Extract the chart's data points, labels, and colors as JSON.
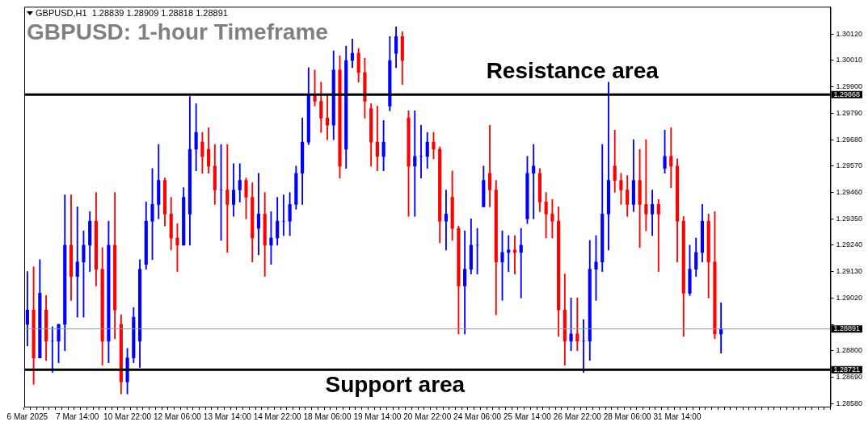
{
  "chart_data": {
    "type": "candlestick",
    "title": "GBPUSD: 1-hour Timeframe",
    "annotations": [
      "GBPUSD,H1  1.28839 1.28909 1.28818 1.28891",
      {
        "text": "Resistance area",
        "y": 1.29868
      },
      {
        "text": "Support area",
        "y": 1.28721
      }
    ],
    "categories": [
      "6 Mar 2025",
      null,
      null,
      null,
      null,
      null,
      null,
      null,
      "7 Mar 14:00",
      null,
      null,
      null,
      null,
      null,
      null,
      null,
      "10 Mar 22:00",
      null,
      null,
      null,
      null,
      null,
      null,
      null,
      "12 Mar 06:00",
      null,
      null,
      null,
      null,
      null,
      null,
      null,
      "13 Mar 14:00",
      null,
      null,
      null,
      null,
      null,
      null,
      null,
      "14 Mar 22:00",
      null,
      null,
      null,
      null,
      null,
      null,
      null,
      "18 Mar 06:00",
      null,
      null,
      null,
      null,
      null,
      null,
      null,
      "19 Mar 14:00",
      null,
      null,
      null,
      null,
      null,
      null,
      null,
      "20 Mar 22:00",
      null,
      null,
      null,
      null,
      null,
      null,
      null,
      "24 Mar 06:00",
      null,
      null,
      null,
      null,
      null,
      null,
      null,
      "25 Mar 14:00",
      null,
      null,
      null,
      null,
      null,
      null,
      null,
      "26 Mar 22:00",
      null,
      null,
      null,
      null,
      null,
      null,
      null,
      "28 Mar 06:00",
      null,
      null,
      null,
      null,
      null,
      null,
      null,
      "31 Mar 14:00",
      null,
      null,
      null,
      null,
      null,
      null,
      null,
      null,
      null,
      null,
      null,
      null,
      null,
      null,
      null,
      null,
      null,
      null,
      null,
      null,
      null,
      null,
      null,
      null
    ],
    "ohlc": [
      [
        1.2891,
        1.2913,
        1.2882,
        1.2897
      ],
      [
        1.2897,
        1.2915,
        1.2866,
        1.2877
      ],
      [
        1.2877,
        1.2918,
        1.2877,
        1.2904
      ],
      [
        1.2897,
        1.2903,
        1.2876,
        1.2884
      ],
      [
        1.2884,
        1.289,
        1.2871,
        1.2884
      ],
      [
        1.2884,
        1.2891,
        1.2875,
        1.2891
      ],
      [
        1.2891,
        1.2945,
        1.288,
        1.2924
      ],
      [
        1.2924,
        1.2945,
        1.2901,
        1.2911
      ],
      [
        1.2911,
        1.294,
        1.2894,
        1.2917
      ],
      [
        1.2917,
        1.293,
        1.2894,
        1.2924
      ],
      [
        1.2924,
        1.2938,
        1.2913,
        1.2934
      ],
      [
        1.2934,
        1.2946,
        1.2907,
        1.2914
      ],
      [
        1.2914,
        1.2923,
        1.2874,
        1.2884
      ],
      [
        1.2884,
        1.2934,
        1.2875,
        1.2924
      ],
      [
        1.2924,
        1.2946,
        1.2885,
        1.2897
      ],
      [
        1.2891,
        1.2895,
        1.2862,
        1.2867
      ],
      [
        1.2867,
        1.2881,
        1.2862,
        1.2877
      ],
      [
        1.2877,
        1.2898,
        1.2875,
        1.2894
      ],
      [
        1.2884,
        1.2918,
        1.2873,
        1.2914
      ],
      [
        1.2916,
        1.2942,
        1.2914,
        1.2934
      ],
      [
        1.2934,
        1.2956,
        1.2918,
        1.2941
      ],
      [
        1.2941,
        1.2966,
        1.2935,
        1.2951
      ],
      [
        1.2951,
        1.2952,
        1.2932,
        1.2937
      ],
      [
        1.2937,
        1.2944,
        1.2922,
        1.2927
      ],
      [
        1.2927,
        1.2933,
        1.2913,
        1.2924
      ],
      [
        1.2924,
        1.2948,
        1.2924,
        1.2944
      ],
      [
        1.2937,
        1.2986,
        1.2924,
        1.2964
      ],
      [
        1.2964,
        1.2983,
        1.2955,
        1.2971
      ],
      [
        1.2967,
        1.2971,
        1.2954,
        1.2961
      ],
      [
        1.2964,
        1.2973,
        1.2954,
        1.2957
      ],
      [
        1.2957,
        1.2966,
        1.2941,
        1.2947
      ],
      [
        1.2947,
        1.2966,
        1.2926,
        1.2947
      ],
      [
        1.2947,
        1.2966,
        1.2921,
        1.2941
      ],
      [
        1.2941,
        1.2958,
        1.2936,
        1.2947
      ],
      [
        1.2947,
        1.2958,
        1.2942,
        1.2951
      ],
      [
        1.2951,
        1.2952,
        1.2935,
        1.2944
      ],
      [
        1.2944,
        1.295,
        1.2917,
        1.2927
      ],
      [
        1.2931,
        1.2954,
        1.292,
        1.2937
      ],
      [
        1.2937,
        1.2946,
        1.2911,
        1.2924
      ],
      [
        1.2924,
        1.2938,
        1.2916,
        1.2927
      ],
      [
        1.2927,
        1.2944,
        1.2924,
        1.2934
      ],
      [
        1.2934,
        1.2945,
        1.2928,
        1.2934
      ],
      [
        1.2934,
        1.2946,
        1.2928,
        1.2941
      ],
      [
        1.2941,
        1.2957,
        1.2939,
        1.2954
      ],
      [
        1.2954,
        1.2977,
        1.2941,
        1.2967
      ],
      [
        1.2967,
        1.2998,
        1.2966,
        1.2987
      ],
      [
        1.2987,
        1.2997,
        1.2982,
        1.2984
      ],
      [
        1.2984,
        1.2992,
        1.2971,
        1.2977
      ],
      [
        1.2977,
        1.2987,
        1.2968,
        1.2974
      ],
      [
        1.2974,
        1.3005,
        1.2968,
        1.2997
      ],
      [
        1.2997,
        1.3003,
        1.2952,
        1.2957
      ],
      [
        1.2964,
        1.3007,
        1.2956,
        1.3001
      ],
      [
        1.3001,
        1.301,
        1.2998,
        1.3004
      ],
      [
        1.3004,
        1.3006,
        1.2992,
        1.2996
      ],
      [
        1.2996,
        1.3002,
        1.2977,
        1.2984
      ],
      [
        1.2981,
        1.2983,
        1.2957,
        1.2967
      ],
      [
        1.2967,
        1.2982,
        1.2955,
        1.2961
      ],
      [
        1.2961,
        1.2976,
        1.2955,
        1.2967
      ],
      [
        1.2982,
        1.3011,
        1.298,
        1.3001
      ],
      [
        1.3004,
        1.3015,
        1.2998,
        1.3011
      ],
      [
        1.3011,
        1.3013,
        1.2991,
        1.3001
      ],
      [
        1.2977,
        1.298,
        1.2936,
        1.2957
      ],
      [
        1.2957,
        1.298,
        1.2936,
        1.2961
      ],
      [
        1.2961,
        1.2974,
        1.2952,
        1.2961
      ],
      [
        1.2961,
        1.2971,
        1.2956,
        1.2967
      ],
      [
        1.2967,
        1.2971,
        1.296,
        1.2964
      ],
      [
        1.2964,
        1.2965,
        1.2925,
        1.2934
      ],
      [
        1.2934,
        1.2947,
        1.2922,
        1.2937
      ],
      [
        1.2944,
        1.2955,
        1.2926,
        1.2931
      ],
      [
        1.2931,
        1.2932,
        1.2887,
        1.2907
      ],
      [
        1.2907,
        1.293,
        1.2887,
        1.2914
      ],
      [
        1.2914,
        1.2935,
        1.2912,
        1.2924
      ],
      [
        1.2924,
        1.2931,
        1.2912,
        1.2924
      ],
      [
        1.294,
        1.2957,
        1.294,
        1.2951
      ],
      [
        1.2954,
        1.2974,
        1.294,
        1.2947
      ],
      [
        1.2947,
        1.2951,
        1.2895,
        1.2917
      ],
      [
        1.2917,
        1.293,
        1.2901,
        1.2921
      ],
      [
        1.2921,
        1.2928,
        1.2913,
        1.2922
      ],
      [
        1.2922,
        1.2928,
        1.2912,
        1.2921
      ],
      [
        1.2921,
        1.2931,
        1.2902,
        1.2924
      ],
      [
        1.2935,
        1.2961,
        1.2933,
        1.2954
      ],
      [
        1.2954,
        1.2966,
        1.2935,
        1.2957
      ],
      [
        1.2954,
        1.2956,
        1.2938,
        1.2942
      ],
      [
        1.2942,
        1.2946,
        1.2927,
        1.2937
      ],
      [
        1.2937,
        1.2943,
        1.2927,
        1.2934
      ],
      [
        1.2934,
        1.294,
        1.2886,
        1.2897
      ],
      [
        1.2897,
        1.2912,
        1.2874,
        1.2884
      ],
      [
        1.2884,
        1.2902,
        1.288,
        1.2887
      ],
      [
        1.2887,
        1.2902,
        1.288,
        1.2884
      ],
      [
        1.2884,
        1.2893,
        1.2871,
        1.2884
      ],
      [
        1.2884,
        1.2926,
        1.2876,
        1.2914
      ],
      [
        1.2914,
        1.2928,
        1.2901,
        1.2917
      ],
      [
        1.2917,
        1.2966,
        1.2913,
        1.2937
      ],
      [
        1.2937,
        1.2992,
        1.2922,
        1.2951
      ],
      [
        1.2957,
        1.2972,
        1.2946,
        1.2951
      ],
      [
        1.2951,
        1.2954,
        1.2941,
        1.2947
      ],
      [
        1.2947,
        1.2953,
        1.2936,
        1.2941
      ],
      [
        1.2941,
        1.2968,
        1.2938,
        1.2951
      ],
      [
        1.2951,
        1.2964,
        1.2923,
        1.2941
      ],
      [
        1.2941,
        1.2968,
        1.293,
        1.2937
      ],
      [
        1.2937,
        1.2947,
        1.2928,
        1.2941
      ],
      [
        1.2941,
        1.2943,
        1.2913,
        1.2937
      ],
      [
        1.2956,
        1.2972,
        1.2954,
        1.2961
      ],
      [
        1.2961,
        1.2973,
        1.2948,
        1.2957
      ],
      [
        1.2957,
        1.296,
        1.2917,
        1.2934
      ],
      [
        1.2934,
        1.2936,
        1.2886,
        1.2904
      ],
      [
        1.2904,
        1.2924,
        1.2903,
        1.2914
      ],
      [
        1.2914,
        1.2927,
        1.2911,
        1.2921
      ],
      [
        1.2921,
        1.2941,
        1.2917,
        1.2934
      ],
      [
        1.2934,
        1.2937,
        1.2902,
        1.2917
      ],
      [
        1.2917,
        1.2938,
        1.2885,
        1.2887
      ],
      [
        1.2887,
        1.29,
        1.2879,
        1.28891
      ],
      null,
      null,
      null,
      null,
      null,
      null,
      null,
      null,
      null,
      null,
      null,
      null,
      null,
      null,
      null,
      null,
      null
    ],
    "colors": [
      "#0000ff",
      "#ff0000",
      "#0000ff",
      "#ff0000",
      "#0000ff",
      "#0000ff",
      "#0000ff",
      "#ff0000",
      "#0000ff",
      "#0000ff",
      "#0000ff",
      "#ff0000",
      "#ff0000",
      "#0000ff",
      "#ff0000",
      "#ff0000",
      "#0000ff",
      "#0000ff",
      "#0000ff",
      "#0000ff",
      "#0000ff",
      "#0000ff",
      "#ff0000",
      "#ff0000",
      "#ff0000",
      "#0000ff",
      "#0000ff",
      "#0000ff",
      "#ff0000",
      "#ff0000",
      "#ff0000",
      "#0000ff",
      "#ff0000",
      "#0000ff",
      "#0000ff",
      "#ff0000",
      "#ff0000",
      "#0000ff",
      "#ff0000",
      "#0000ff",
      "#0000ff",
      "#0000ff",
      "#0000ff",
      "#0000ff",
      "#0000ff",
      "#0000ff",
      "#ff0000",
      "#ff0000",
      "#ff0000",
      "#0000ff",
      "#ff0000",
      "#0000ff",
      "#0000ff",
      "#ff0000",
      "#ff0000",
      "#ff0000",
      "#ff0000",
      "#0000ff",
      "#0000ff",
      "#0000ff",
      "#ff0000",
      "#ff0000",
      "#0000ff",
      "#0000ff",
      "#0000ff",
      "#ff0000",
      "#ff0000",
      "#0000ff",
      "#ff0000",
      "#ff0000",
      "#0000ff",
      "#0000ff",
      "#0000ff",
      "#0000ff",
      "#ff0000",
      "#ff0000",
      "#0000ff",
      "#0000ff",
      "#ff0000",
      "#0000ff",
      "#0000ff",
      "#0000ff",
      "#ff0000",
      "#ff0000",
      "#ff0000",
      "#ff0000",
      "#ff0000",
      "#0000ff",
      "#ff0000",
      "#0000ff",
      "#0000ff",
      "#0000ff",
      "#0000ff",
      "#0000ff",
      "#ff0000",
      "#ff0000",
      "#ff0000",
      "#0000ff",
      "#ff0000",
      "#ff0000",
      "#0000ff",
      "#ff0000",
      "#0000ff",
      "#ff0000",
      "#ff0000",
      "#ff0000",
      "#0000ff",
      "#0000ff",
      "#0000ff",
      "#ff0000",
      "#ff0000",
      "#0000ff",
      null,
      null,
      null,
      null,
      null,
      null,
      null,
      null,
      null,
      null,
      null,
      null,
      null,
      null,
      null,
      null,
      null
    ],
    "ylim": [
      1.28567,
      1.30234
    ],
    "yticks": [
      {
        "value": 1.2858,
        "label": "1.28580"
      },
      {
        "value": 1.2869,
        "label": "1.28690"
      },
      {
        "value": 1.288,
        "label": "1.28800"
      },
      {
        "value": 1.2891,
        "label": null
      },
      {
        "value": 1.2902,
        "label": "1.29020"
      },
      {
        "value": 1.2913,
        "label": "1.29130"
      },
      {
        "value": 1.2924,
        "label": "1.29240"
      },
      {
        "value": 1.2935,
        "label": "1.29350"
      },
      {
        "value": 1.2946,
        "label": "1.29460"
      },
      {
        "value": 1.2957,
        "label": "1.29570"
      },
      {
        "value": 1.2968,
        "label": "1.29680"
      },
      {
        "value": 1.2979,
        "label": "1.29790"
      },
      {
        "value": 1.299,
        "label": "1.29900"
      },
      {
        "value": 1.3001,
        "label": "1.30010"
      },
      {
        "value": 1.3012,
        "label": "1.30120"
      }
    ],
    "ref_lines": [
      {
        "axis": "y",
        "value": 1.29868,
        "label": "1.29868",
        "color": "#000000",
        "line_style": "solid"
      },
      {
        "axis": "y",
        "value": 1.28721,
        "label": "1.28721",
        "color": "#000000",
        "line_style": "solid"
      },
      {
        "axis": "y",
        "value": 1.28891,
        "label": "1.28891",
        "color": "#8c9aa8",
        "line_style": "solid"
      }
    ]
  }
}
